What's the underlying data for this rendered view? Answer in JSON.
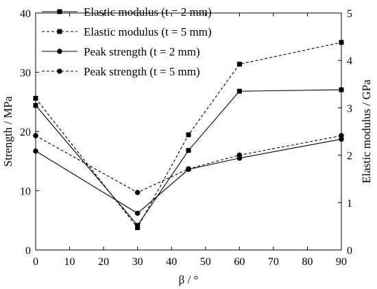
{
  "chart_data": {
    "type": "line",
    "xlabel": "β / °",
    "ylabel_left": "Strength / MPa",
    "ylabel_right": "Elastic modulus / GPa",
    "x": [
      0,
      30,
      45,
      60,
      90
    ],
    "xlim": [
      0,
      90
    ],
    "ylim_left": [
      0,
      40
    ],
    "ylim_right": [
      0,
      5
    ],
    "x_ticks": [
      "0",
      "10",
      "20",
      "30",
      "40",
      "50",
      "60",
      "70",
      "80",
      "90"
    ],
    "y_left_ticks": [
      "0",
      "10",
      "20",
      "30",
      "40"
    ],
    "y_right_ticks": [
      "0",
      "1",
      "2",
      "3",
      "4",
      "5"
    ],
    "grid": false,
    "legend_position": "top-left",
    "series": [
      {
        "name": "Elastic modulus (t = 2 mm)",
        "axis": "right",
        "line": "solid",
        "marker": "square",
        "values": [
          3.05,
          0.52,
          2.1,
          3.35,
          3.38
        ]
      },
      {
        "name": "Elastic modulus (t = 5 mm)",
        "axis": "right",
        "line": "dashed",
        "marker": "square",
        "values": [
          3.2,
          0.47,
          2.43,
          3.92,
          4.38
        ]
      },
      {
        "name": "Peak strength (t = 2 mm)",
        "axis": "left",
        "line": "solid",
        "marker": "circle",
        "values": [
          16.7,
          6.2,
          13.6,
          15.5,
          18.7
        ]
      },
      {
        "name": "Peak strength (t = 5 mm)",
        "axis": "left",
        "line": "dashed",
        "marker": "circle",
        "values": [
          19.3,
          9.7,
          13.7,
          16.0,
          19.3
        ]
      }
    ]
  }
}
